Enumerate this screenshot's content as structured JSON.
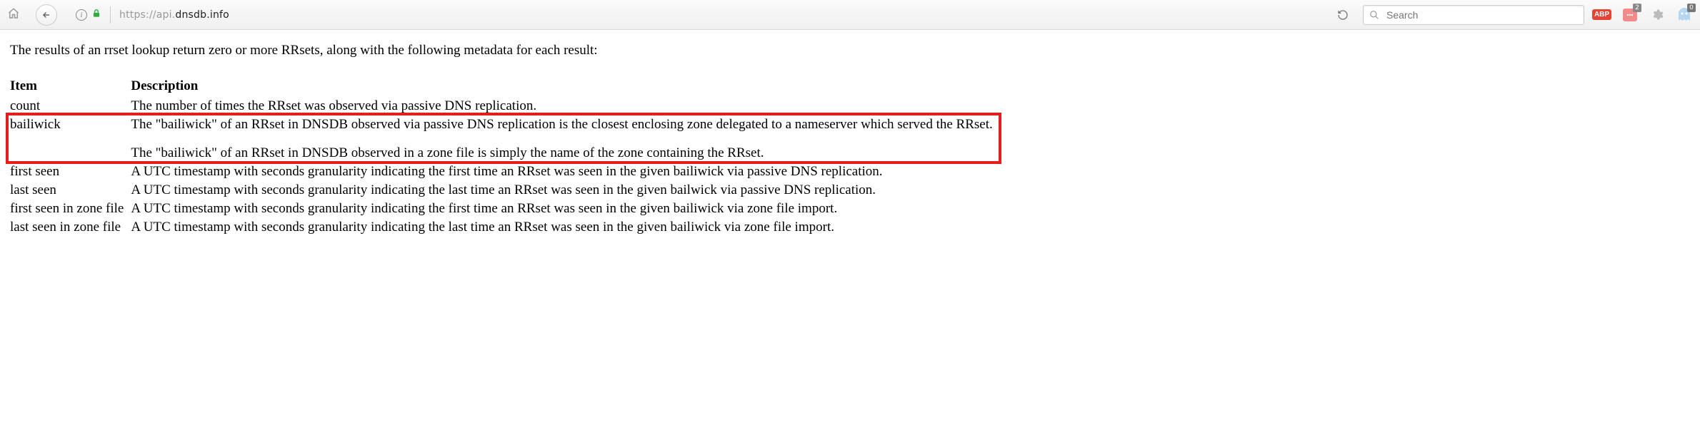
{
  "chrome": {
    "url_prefix": "https://api.",
    "url_domain": "dnsdb.info",
    "url_suffix": "",
    "search_placeholder": "Search",
    "abp_label": "ABP",
    "pocket_badge": "2",
    "ghost_badge": "0"
  },
  "intro": "The results of an rrset lookup return zero or more RRsets, along with the following metadata for each result:",
  "headers": {
    "item": "Item",
    "desc": "Description"
  },
  "rows": [
    {
      "item": "count",
      "desc": "The number of times the RRset was observed via passive DNS replication.",
      "highlighted": false
    },
    {
      "item": "bailiwick",
      "desc_a": "The \"bailiwick\" of an RRset in DNSDB observed via passive DNS replication is the closest enclosing zone delegated to a nameserver which served the RRset.",
      "desc_b": "The \"bailiwick\" of an RRset in DNSDB observed in a zone file is simply the name of the zone containing the RRset.",
      "highlighted": true
    },
    {
      "item": "first seen",
      "desc": "A UTC timestamp with seconds granularity indicating the first time an RRset was seen in the given bailiwick via passive DNS replication.",
      "highlighted": false
    },
    {
      "item": "last seen",
      "desc": "A UTC timestamp with seconds granularity indicating the last time an RRset was seen in the given bailwick via passive DNS replication.",
      "highlighted": false
    },
    {
      "item": "first seen in zone file",
      "desc": "A UTC timestamp with seconds granularity indicating the first time an RRset was seen in the given bailiwick via zone file import.",
      "highlighted": false
    },
    {
      "item": "last seen in zone file",
      "desc": "A UTC timestamp with seconds granularity indicating the last time an RRset was seen in the given bailiwick via zone file import.",
      "highlighted": false
    }
  ],
  "colors": {
    "highlight_border": "#e51d1d",
    "chrome_bg_top": "#fbfbfb",
    "chrome_bg_bottom": "#f0f0f0",
    "lock_green": "#2eae3f",
    "abp_red": "#e74335"
  }
}
